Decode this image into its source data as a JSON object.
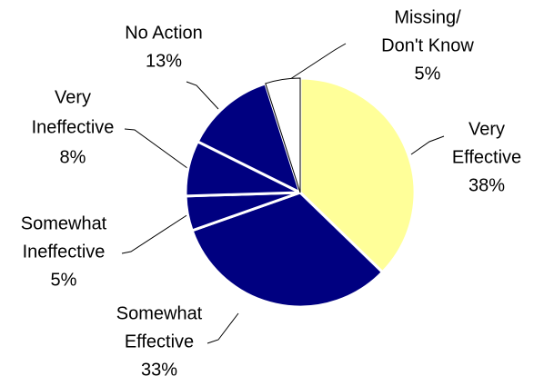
{
  "chart_data": {
    "type": "pie",
    "categories": [
      [
        "Very",
        "Effective"
      ],
      [
        "Somewhat",
        "Effective"
      ],
      [
        "Somewhat",
        "Ineffective"
      ],
      [
        "Very",
        "Ineffective"
      ],
      [
        "No Action"
      ],
      [
        "Missing/",
        "Don't Know"
      ]
    ],
    "values": [
      38,
      33,
      5,
      8,
      13,
      5
    ],
    "value_labels": [
      "38%",
      "33%",
      "5%",
      "8%",
      "13%",
      "5%"
    ],
    "colors": [
      "#ffff99",
      "#000080",
      "#000080",
      "#000080",
      "#000080",
      "#ffffff"
    ]
  }
}
